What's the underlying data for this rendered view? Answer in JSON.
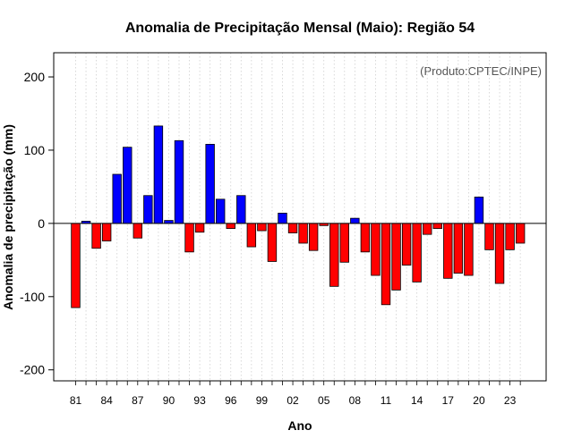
{
  "chart_data": {
    "type": "bar",
    "title": "Anomalia de Precipitação Mensal (Maio): Região 54",
    "xlabel": "Ano",
    "ylabel": "Anomalia de precipitação (mm)",
    "annotation": "(Produto:CPTEC/INPE)",
    "ylim": [
      -215,
      233
    ],
    "yticks": [
      -200,
      -100,
      0,
      100,
      200
    ],
    "xtick_labels": [
      "81",
      "84",
      "87",
      "90",
      "93",
      "96",
      "99",
      "02",
      "05",
      "08",
      "11",
      "14",
      "17",
      "20",
      "23"
    ],
    "grid": "vertical dotted",
    "colors": {
      "positive": "#0000ff",
      "negative": "#ff0000"
    },
    "categories": [
      "1981",
      "1982",
      "1983",
      "1984",
      "1985",
      "1986",
      "1987",
      "1988",
      "1989",
      "1990",
      "1991",
      "1992",
      "1993",
      "1994",
      "1995",
      "1996",
      "1997",
      "1998",
      "1999",
      "2000",
      "2001",
      "2002",
      "2003",
      "2004",
      "2005",
      "2006",
      "2007",
      "2008",
      "2009",
      "2010",
      "2011",
      "2012",
      "2013",
      "2014",
      "2015",
      "2016",
      "2017",
      "2018",
      "2019",
      "2020",
      "2021",
      "2022",
      "2023",
      "2024"
    ],
    "values": [
      -115,
      3,
      -34,
      -24,
      67,
      104,
      -20,
      38,
      133,
      4,
      113,
      -39,
      -12,
      108,
      33,
      -7,
      38,
      -32,
      -10,
      -52,
      14,
      -13,
      -27,
      -37,
      -3,
      -86,
      -53,
      7,
      -39,
      -71,
      -111,
      -91,
      -57,
      -80,
      -15,
      -7,
      -75,
      -68,
      -71,
      36,
      -36,
      -82,
      -36,
      -27
    ]
  }
}
